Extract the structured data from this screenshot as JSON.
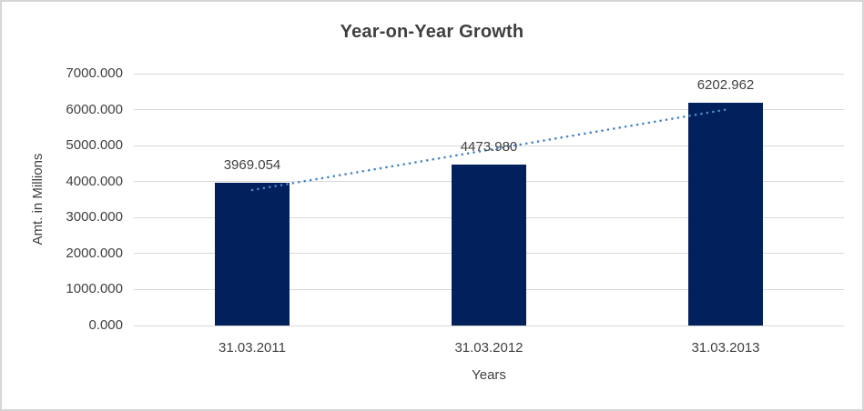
{
  "chart_data": {
    "type": "bar",
    "title": "Year-on-Year Growth",
    "xlabel": "Years",
    "ylabel": "Amt. in Millions",
    "categories": [
      "31.03.2011",
      "31.03.2012",
      "31.03.2013"
    ],
    "series": [
      {
        "name": "Amt. in Millions",
        "values": [
          3969.054,
          4473.98,
          6202.962
        ]
      }
    ],
    "data_labels": [
      "3969.054",
      "4473.980",
      "6202.962"
    ],
    "ylim": [
      0,
      7000
    ],
    "ytick_step": 1000,
    "ytick_labels": [
      "0.000",
      "1000.000",
      "2000.000",
      "3000.000",
      "4000.000",
      "5000.000",
      "6000.000",
      "7000.000"
    ],
    "grid": true,
    "legend": "none",
    "trendline": {
      "type": "linear",
      "style": "dotted"
    },
    "colors": {
      "bar": "#02215C",
      "trendline": "#4A85C6",
      "gridline": "#D9D9D9",
      "axis_line": "#D9D9D9",
      "text": "#404040",
      "title_text": "#3F3F3F",
      "border": "#D6D6D6",
      "background": "#FFFFFF"
    }
  }
}
